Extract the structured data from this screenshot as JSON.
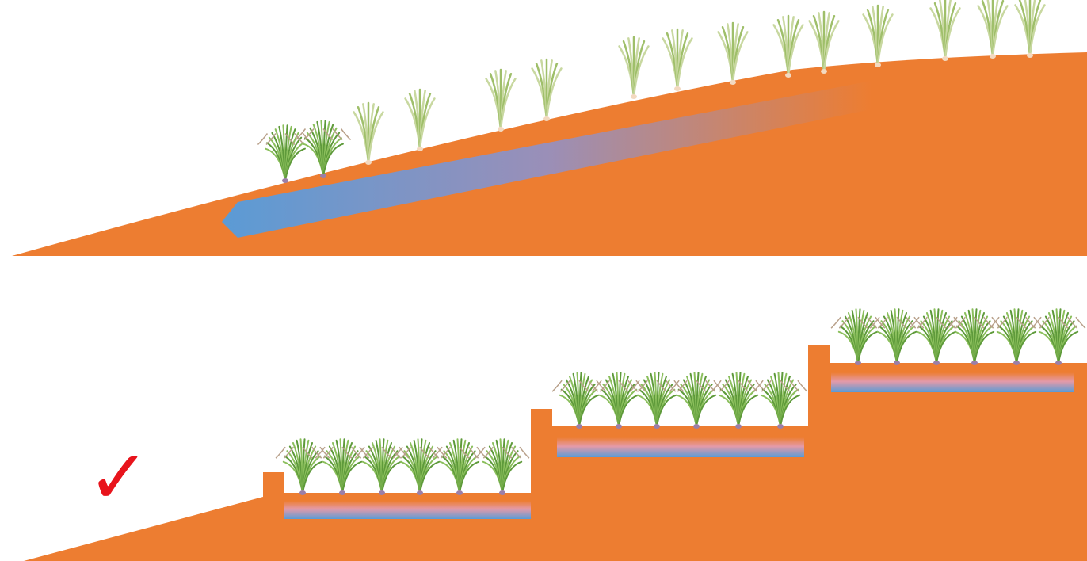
{
  "check": "✓"
}
